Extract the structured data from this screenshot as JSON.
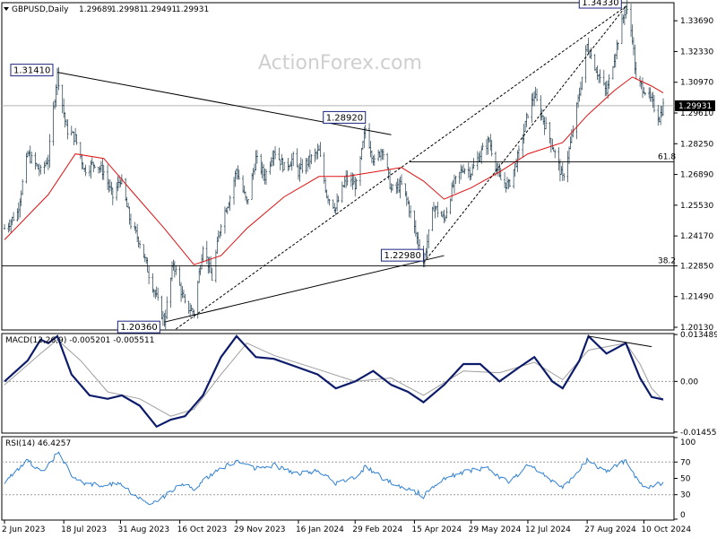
{
  "chart_data": [
    {
      "type": "candlestick",
      "title": "GBPUSD,Daily",
      "ohlc_header": [
        "1.29689",
        "1.29981",
        "1.29491",
        "1.29931"
      ],
      "watermark": "ActionForex.com",
      "y_ticks": [
        "1.33690",
        "1.32330",
        "1.30970",
        "1.29610",
        "1.28250",
        "1.26890",
        "1.25530",
        "1.24170",
        "1.22850",
        "1.21490",
        "1.20130"
      ],
      "ylim": [
        1.2005,
        1.3445
      ],
      "x_ticks": [
        "2 Jun 2023",
        "18 Jul 2023",
        "31 Aug 2023",
        "16 Oct 2023",
        "29 Nov 2023",
        "16 Jan 2024",
        "29 Feb 2024",
        "15 Apr 2024",
        "29 May 2024",
        "12 Jul 2024",
        "27 Aug 2024",
        "10 Oct 2024"
      ],
      "current_price": "1.29931",
      "annotations": [
        {
          "label": "1.31410",
          "value": 1.3141,
          "date": "2023-07-13"
        },
        {
          "label": "1.28920",
          "value": 1.2892,
          "date": "2024-03-08"
        },
        {
          "label": "1.20360",
          "value": 1.2036,
          "date": "2023-10-04"
        },
        {
          "label": "1.22980",
          "value": 1.2298,
          "date": "2024-04-22"
        },
        {
          "label": "1.34330",
          "value": 1.3433,
          "date": "2024-09-26"
        }
      ],
      "fib_levels": [
        {
          "label": "61.8",
          "value": 1.2745
        },
        {
          "label": "38.2",
          "value": 1.2285
        }
      ],
      "trendlines": [
        {
          "name": "upper",
          "from": {
            "date": "2023-07-13",
            "value": 1.3141
          },
          "to": {
            "date": "2024-03-28",
            "value": 1.2865
          }
        },
        {
          "name": "lower",
          "from": {
            "date": "2023-10-04",
            "value": 1.2036
          },
          "to": {
            "date": "2024-05-08",
            "value": 1.233
          }
        },
        {
          "name": "channel-upper",
          "from": {
            "date": "2023-10-13",
            "value": 1.2005
          },
          "to": {
            "date": "2024-09-26",
            "value": 1.3433
          }
        },
        {
          "name": "channel-lower",
          "from": {
            "date": "2024-04-22",
            "value": 1.2298
          },
          "to": {
            "date": "2024-09-26",
            "value": 1.3433
          }
        }
      ],
      "price_path": [
        [
          "2023-06-02",
          1.245
        ],
        [
          "2023-06-12",
          1.252
        ],
        [
          "2023-06-20",
          1.278
        ],
        [
          "2023-06-30",
          1.27
        ],
        [
          "2023-07-06",
          1.276
        ],
        [
          "2023-07-13",
          1.3141
        ],
        [
          "2023-07-20",
          1.289
        ],
        [
          "2023-07-27",
          1.285
        ],
        [
          "2023-08-03",
          1.271
        ],
        [
          "2023-08-11",
          1.274
        ],
        [
          "2023-08-18",
          1.27
        ],
        [
          "2023-08-25",
          1.259
        ],
        [
          "2023-08-31",
          1.267
        ],
        [
          "2023-09-08",
          1.247
        ],
        [
          "2023-09-15",
          1.239
        ],
        [
          "2023-09-22",
          1.225
        ],
        [
          "2023-10-04",
          1.2036
        ],
        [
          "2023-10-11",
          1.23
        ],
        [
          "2023-10-20",
          1.211
        ],
        [
          "2023-10-27",
          1.208
        ],
        [
          "2023-11-03",
          1.238
        ],
        [
          "2023-11-10",
          1.223
        ],
        [
          "2023-11-17",
          1.248
        ],
        [
          "2023-11-24",
          1.259
        ],
        [
          "2023-11-29",
          1.271
        ],
        [
          "2023-12-07",
          1.256
        ],
        [
          "2023-12-14",
          1.276
        ],
        [
          "2023-12-21",
          1.268
        ],
        [
          "2023-12-28",
          1.28
        ],
        [
          "2024-01-05",
          1.272
        ],
        [
          "2024-01-12",
          1.276
        ],
        [
          "2024-01-16",
          1.27
        ],
        [
          "2024-01-24",
          1.275
        ],
        [
          "2024-02-01",
          1.279
        ],
        [
          "2024-02-07",
          1.26
        ],
        [
          "2024-02-14",
          1.254
        ],
        [
          "2024-02-22",
          1.267
        ],
        [
          "2024-03-01",
          1.264
        ],
        [
          "2024-03-08",
          1.2892
        ],
        [
          "2024-03-15",
          1.274
        ],
        [
          "2024-03-21",
          1.281
        ],
        [
          "2024-03-28",
          1.262
        ],
        [
          "2024-04-05",
          1.264
        ],
        [
          "2024-04-10",
          1.256
        ],
        [
          "2024-04-15",
          1.245
        ],
        [
          "2024-04-22",
          1.2298
        ],
        [
          "2024-04-30",
          1.255
        ],
        [
          "2024-05-08",
          1.249
        ],
        [
          "2024-05-15",
          1.264
        ],
        [
          "2024-05-23",
          1.272
        ],
        [
          "2024-05-29",
          1.27
        ],
        [
          "2024-06-05",
          1.278
        ],
        [
          "2024-06-12",
          1.284
        ],
        [
          "2024-06-20",
          1.267
        ],
        [
          "2024-06-27",
          1.264
        ],
        [
          "2024-07-05",
          1.278
        ],
        [
          "2024-07-12",
          1.296
        ],
        [
          "2024-07-17",
          1.304
        ],
        [
          "2024-07-24",
          1.293
        ],
        [
          "2024-08-01",
          1.28
        ],
        [
          "2024-08-08",
          1.267
        ],
        [
          "2024-08-15",
          1.285
        ],
        [
          "2024-08-21",
          1.305
        ],
        [
          "2024-08-27",
          1.326
        ],
        [
          "2024-09-04",
          1.314
        ],
        [
          "2024-09-11",
          1.305
        ],
        [
          "2024-09-17",
          1.321
        ],
        [
          "2024-09-26",
          1.3433
        ],
        [
          "2024-10-01",
          1.33
        ],
        [
          "2024-10-04",
          1.31
        ],
        [
          "2024-10-10",
          1.307
        ],
        [
          "2024-10-16",
          1.301
        ],
        [
          "2024-10-22",
          1.294
        ],
        [
          "2024-10-25",
          1.2993
        ]
      ],
      "ma_path": [
        [
          "2023-06-02",
          1.24
        ],
        [
          "2023-07-06",
          1.26
        ],
        [
          "2023-07-27",
          1.278
        ],
        [
          "2023-08-18",
          1.276
        ],
        [
          "2023-09-08",
          1.262
        ],
        [
          "2023-10-04",
          1.245
        ],
        [
          "2023-10-27",
          1.229
        ],
        [
          "2023-11-17",
          1.233
        ],
        [
          "2023-12-07",
          1.245
        ],
        [
          "2024-01-05",
          1.259
        ],
        [
          "2024-02-01",
          1.268
        ],
        [
          "2024-02-22",
          1.268
        ],
        [
          "2024-03-15",
          1.27
        ],
        [
          "2024-04-05",
          1.272
        ],
        [
          "2024-04-22",
          1.266
        ],
        [
          "2024-05-08",
          1.258
        ],
        [
          "2024-05-29",
          1.263
        ],
        [
          "2024-06-20",
          1.27
        ],
        [
          "2024-07-12",
          1.278
        ],
        [
          "2024-08-08",
          1.283
        ],
        [
          "2024-08-27",
          1.295
        ],
        [
          "2024-09-17",
          1.306
        ],
        [
          "2024-10-01",
          1.312
        ],
        [
          "2024-10-16",
          1.308
        ],
        [
          "2024-10-25",
          1.305
        ]
      ]
    },
    {
      "type": "line",
      "title": "MACD(12,26,9) -0.005201 -0.005511",
      "y_ticks": [
        "0.013489",
        "0.00",
        "-0.014554"
      ],
      "ylim": [
        -0.0146,
        0.0135
      ],
      "series": [
        {
          "values": [
            [
              "2023-06-02",
              0.0
            ],
            [
              "2023-06-20",
              0.006
            ],
            [
              "2023-06-30",
              0.012
            ],
            [
              "2023-07-06",
              0.011
            ],
            [
              "2023-07-13",
              0.013
            ],
            [
              "2023-07-24",
              0.002
            ],
            [
              "2023-08-07",
              -0.004
            ],
            [
              "2023-08-21",
              -0.005
            ],
            [
              "2023-09-01",
              -0.004
            ],
            [
              "2023-09-15",
              -0.007
            ],
            [
              "2023-09-28",
              -0.013
            ],
            [
              "2023-10-09",
              -0.011
            ],
            [
              "2023-10-20",
              -0.01
            ],
            [
              "2023-11-03",
              -0.004
            ],
            [
              "2023-11-17",
              0.007
            ],
            [
              "2023-11-29",
              0.013
            ],
            [
              "2023-12-14",
              0.007
            ],
            [
              "2023-12-28",
              0.0065
            ],
            [
              "2024-01-16",
              0.004
            ],
            [
              "2024-01-31",
              0.002
            ],
            [
              "2024-02-14",
              -0.002
            ],
            [
              "2024-02-29",
              0.0
            ],
            [
              "2024-03-14",
              0.003
            ],
            [
              "2024-03-28",
              -0.001
            ],
            [
              "2024-04-10",
              -0.003
            ],
            [
              "2024-04-22",
              -0.006
            ],
            [
              "2024-05-08",
              -0.001
            ],
            [
              "2024-05-23",
              0.005
            ],
            [
              "2024-06-05",
              0.005
            ],
            [
              "2024-06-20",
              0.0
            ],
            [
              "2024-07-05",
              0.004
            ],
            [
              "2024-07-17",
              0.007
            ],
            [
              "2024-07-31",
              0.0
            ],
            [
              "2024-08-08",
              -0.002
            ],
            [
              "2024-08-21",
              0.006
            ],
            [
              "2024-08-28",
              0.013
            ],
            [
              "2024-09-11",
              0.008
            ],
            [
              "2024-09-26",
              0.011
            ],
            [
              "2024-10-07",
              0.001
            ],
            [
              "2024-10-16",
              -0.0045
            ],
            [
              "2024-10-25",
              -0.0052
            ]
          ]
        },
        {
          "values": [
            [
              "2023-06-02",
              -0.001
            ],
            [
              "2023-06-30",
              0.008
            ],
            [
              "2023-07-13",
              0.012
            ],
            [
              "2023-07-31",
              0.006
            ],
            [
              "2023-08-21",
              -0.003
            ],
            [
              "2023-09-15",
              -0.005
            ],
            [
              "2023-10-09",
              -0.01
            ],
            [
              "2023-10-27",
              -0.008
            ],
            [
              "2023-11-17",
              0.002
            ],
            [
              "2023-12-07",
              0.011
            ],
            [
              "2023-12-28",
              0.0075
            ],
            [
              "2024-01-31",
              0.0035
            ],
            [
              "2024-02-29",
              0.0
            ],
            [
              "2024-03-28",
              0.001
            ],
            [
              "2024-04-22",
              -0.004
            ],
            [
              "2024-05-23",
              0.003
            ],
            [
              "2024-06-20",
              0.0025
            ],
            [
              "2024-07-17",
              0.0055
            ],
            [
              "2024-08-08",
              0.0005
            ],
            [
              "2024-08-28",
              0.009
            ],
            [
              "2024-09-26",
              0.011
            ],
            [
              "2024-10-07",
              0.005
            ],
            [
              "2024-10-16",
              -0.002
            ],
            [
              "2024-10-25",
              -0.0055
            ]
          ]
        }
      ],
      "divergence_line": {
        "from": {
          "date": "2024-08-28",
          "value": 0.013
        },
        "to": {
          "date": "2024-10-16",
          "value": 0.01
        }
      }
    },
    {
      "type": "line",
      "title": "RSI(14) 46.4257",
      "y_ticks": [
        "100",
        "70",
        "50",
        "30",
        "0"
      ],
      "ylim": [
        0,
        100
      ],
      "series": [
        {
          "values": [
            [
              "2023-06-02",
              45
            ],
            [
              "2023-06-12",
              60
            ],
            [
              "2023-06-20",
              72
            ],
            [
              "2023-06-30",
              60
            ],
            [
              "2023-07-06",
              65
            ],
            [
              "2023-07-13",
              82
            ],
            [
              "2023-07-24",
              55
            ],
            [
              "2023-08-03",
              45
            ],
            [
              "2023-08-18",
              40
            ],
            [
              "2023-08-31",
              45
            ],
            [
              "2023-09-08",
              32
            ],
            [
              "2023-09-22",
              20
            ],
            [
              "2023-10-04",
              28
            ],
            [
              "2023-10-16",
              42
            ],
            [
              "2023-10-27",
              38
            ],
            [
              "2023-11-10",
              55
            ],
            [
              "2023-11-29",
              72
            ],
            [
              "2023-12-14",
              62
            ],
            [
              "2023-12-28",
              66
            ],
            [
              "2024-01-16",
              55
            ],
            [
              "2024-01-31",
              60
            ],
            [
              "2024-02-14",
              44
            ],
            [
              "2024-02-29",
              52
            ],
            [
              "2024-03-08",
              64
            ],
            [
              "2024-03-28",
              44
            ],
            [
              "2024-04-15",
              35
            ],
            [
              "2024-04-22",
              28
            ],
            [
              "2024-05-08",
              50
            ],
            [
              "2024-05-29",
              60
            ],
            [
              "2024-06-12",
              62
            ],
            [
              "2024-06-27",
              44
            ],
            [
              "2024-07-12",
              66
            ],
            [
              "2024-07-24",
              55
            ],
            [
              "2024-08-08",
              38
            ],
            [
              "2024-08-27",
              72
            ],
            [
              "2024-09-11",
              58
            ],
            [
              "2024-09-26",
              72
            ],
            [
              "2024-10-07",
              42
            ],
            [
              "2024-10-16",
              38
            ],
            [
              "2024-10-25",
              46
            ]
          ]
        }
      ]
    }
  ]
}
